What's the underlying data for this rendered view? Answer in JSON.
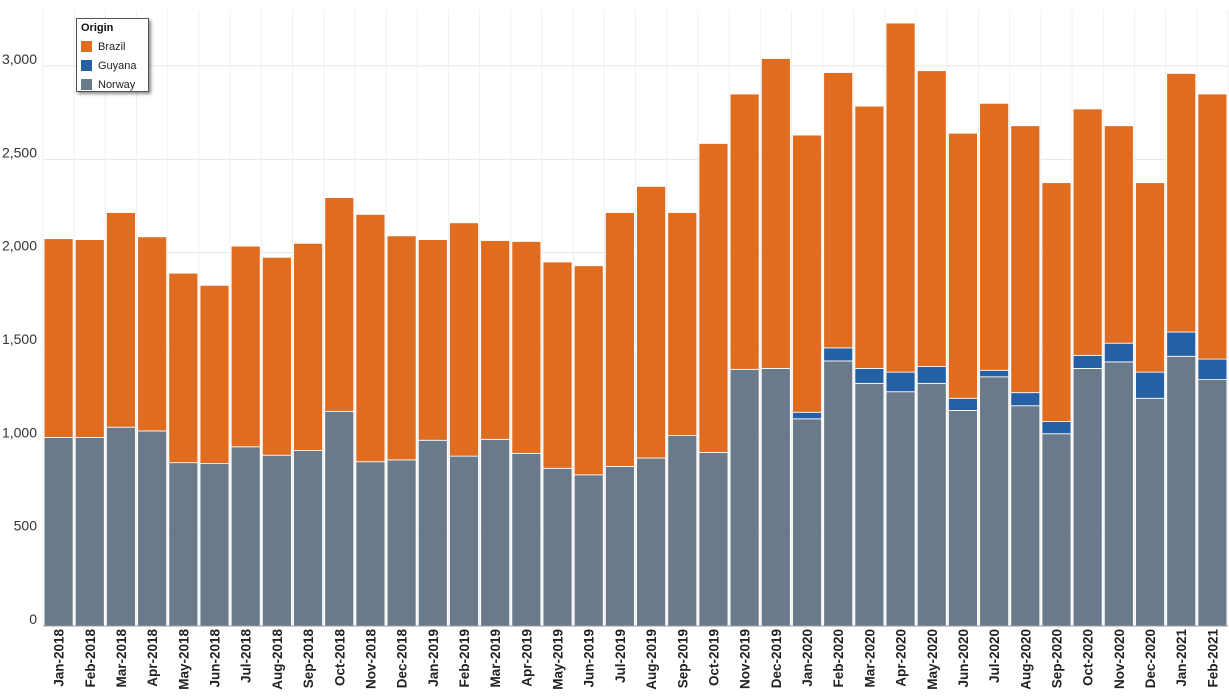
{
  "chart_data": {
    "type": "bar",
    "stacked": true,
    "title": "",
    "xlabel": "",
    "ylabel": "",
    "ylim": [
      0,
      3300
    ],
    "yticks": [
      0,
      500,
      1000,
      1500,
      2000,
      2500,
      3000
    ],
    "ytick_labels": [
      "0",
      "500",
      "1,000",
      "1,500",
      "2,000",
      "2,500",
      "3,000"
    ],
    "grid": true,
    "legend": {
      "title": "Origin",
      "position": "top-left",
      "entries": [
        "Brazil",
        "Guyana",
        "Norway"
      ]
    },
    "categories": [
      "Jan-2018",
      "Feb-2018",
      "Mar-2018",
      "Apr-2018",
      "May-2018",
      "Jun-2018",
      "Jul-2018",
      "Aug-2018",
      "Sep-2018",
      "Oct-2018",
      "Nov-2018",
      "Dec-2018",
      "Jan-2019",
      "Feb-2019",
      "Mar-2019",
      "Apr-2019",
      "May-2019",
      "Jun-2019",
      "Jul-2019",
      "Aug-2019",
      "Sep-2019",
      "Oct-2019",
      "Nov-2019",
      "Dec-2019",
      "Jan-2020",
      "Feb-2020",
      "Mar-2020",
      "Apr-2020",
      "May-2020",
      "Jun-2020",
      "Jul-2020",
      "Aug-2020",
      "Sep-2020",
      "Oct-2020",
      "Nov-2020",
      "Dec-2020",
      "Jan-2021",
      "Feb-2021"
    ],
    "series": [
      {
        "name": "Norway",
        "color": "#6b7a8a",
        "values": [
          1010,
          1010,
          1065,
          1045,
          875,
          870,
          960,
          915,
          940,
          1150,
          880,
          890,
          995,
          910,
          1000,
          925,
          845,
          810,
          855,
          900,
          1020,
          930,
          1375,
          1380,
          1110,
          1420,
          1300,
          1255,
          1300,
          1155,
          1335,
          1180,
          1030,
          1380,
          1415,
          1220,
          1445,
          1320
        ]
      },
      {
        "name": "Guyana",
        "color": "#2660a4",
        "values": [
          0,
          0,
          0,
          0,
          0,
          0,
          0,
          0,
          0,
          0,
          0,
          0,
          0,
          0,
          0,
          0,
          0,
          0,
          0,
          0,
          0,
          0,
          0,
          0,
          35,
          70,
          80,
          105,
          90,
          65,
          35,
          70,
          65,
          70,
          100,
          140,
          130,
          110
        ]
      },
      {
        "name": "Brazil",
        "color": "#e06c20",
        "values": [
          1065,
          1060,
          1150,
          1040,
          1015,
          955,
          1075,
          1060,
          1110,
          1145,
          1325,
          1200,
          1075,
          1250,
          1065,
          1135,
          1105,
          1120,
          1360,
          1455,
          1195,
          1655,
          1475,
          1660,
          1485,
          1475,
          1405,
          1870,
          1585,
          1420,
          1430,
          1430,
          1280,
          1320,
          1165,
          1015,
          1385,
          1420
        ]
      }
    ]
  }
}
